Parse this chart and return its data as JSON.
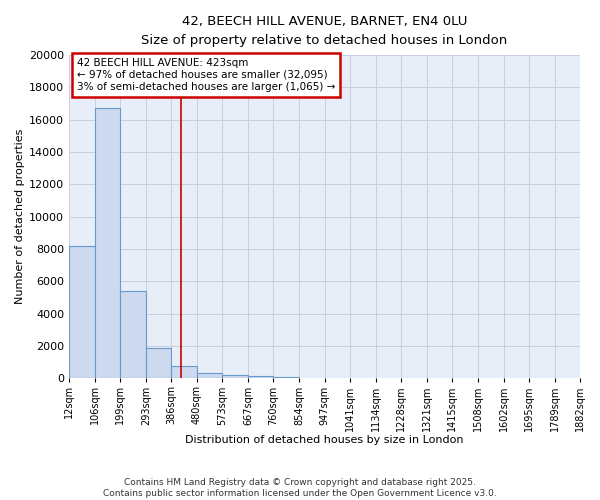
{
  "title": "42, BEECH HILL AVENUE, BARNET, EN4 0LU",
  "subtitle": "Size of property relative to detached houses in London",
  "xlabel": "Distribution of detached houses by size in London",
  "ylabel": "Number of detached properties",
  "bar_color": "#ccd9ee",
  "bar_edge_color": "#6699cc",
  "plot_bg_color": "#e8eef8",
  "fig_bg_color": "#ffffff",
  "grid_color": "#c8d0e0",
  "bin_edges": [
    12,
    106,
    199,
    293,
    386,
    480,
    573,
    667,
    760,
    854,
    947,
    1041,
    1134,
    1228,
    1321,
    1415,
    1508,
    1602,
    1695,
    1789,
    1882
  ],
  "bar_heights": [
    8200,
    16700,
    5400,
    1850,
    750,
    320,
    200,
    130,
    100,
    0,
    0,
    0,
    0,
    0,
    0,
    0,
    0,
    0,
    0,
    0
  ],
  "red_line_x": 423,
  "annotation_text": "42 BEECH HILL AVENUE: 423sqm\n← 97% of detached houses are smaller (32,095)\n3% of semi-detached houses are larger (1,065) →",
  "annotation_box_facecolor": "#ffffff",
  "annotation_border_color": "#cc0000",
  "ylim": [
    0,
    20000
  ],
  "yticks": [
    0,
    2000,
    4000,
    6000,
    8000,
    10000,
    12000,
    14000,
    16000,
    18000,
    20000
  ],
  "footnote": "Contains HM Land Registry data © Crown copyright and database right 2025.\nContains public sector information licensed under the Open Government Licence v3.0.",
  "tick_labels": [
    "12sqm",
    "106sqm",
    "199sqm",
    "293sqm",
    "386sqm",
    "480sqm",
    "573sqm",
    "667sqm",
    "760sqm",
    "854sqm",
    "947sqm",
    "1041sqm",
    "1134sqm",
    "1228sqm",
    "1321sqm",
    "1415sqm",
    "1508sqm",
    "1602sqm",
    "1695sqm",
    "1789sqm",
    "1882sqm"
  ]
}
